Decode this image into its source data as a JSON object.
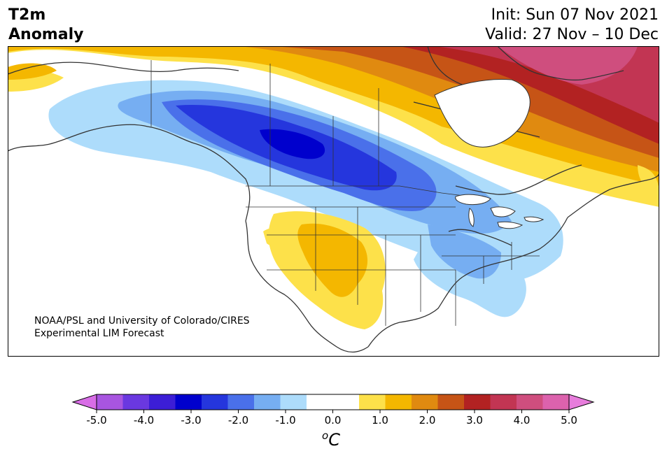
{
  "header": {
    "title_line1": "T2m",
    "title_line2": "Anomaly",
    "init_text": "Init: Sun 07 Nov 2021",
    "valid_text": "Valid: 27 Nov – 10 Dec"
  },
  "credit": {
    "line1": "NOAA/PSL and University of Colorado/CIRES",
    "line2": "Experimental LIM Forecast"
  },
  "colorbar": {
    "unit_sup": "o",
    "unit_base": "C",
    "ticks": [
      "-5.0",
      "-4.0",
      "-3.0",
      "-2.0",
      "-1.0",
      "0.0",
      "1.0",
      "2.0",
      "3.0",
      "4.0",
      "5.0"
    ],
    "colors": [
      "#a855e0",
      "#6a38e0",
      "#3c1ed6",
      "#0000cd",
      "#2536dd",
      "#4a70ea",
      "#76aef2",
      "#addcfb",
      "#ffffff",
      "#ffffff",
      "#fde14a",
      "#f4b700",
      "#e08a10",
      "#c65416",
      "#b22222",
      "#c23553",
      "#cf4e7e",
      "#dc62ad"
    ],
    "extend_low_color": "#d86de6",
    "extend_high_color": "#e77ddc"
  }
}
